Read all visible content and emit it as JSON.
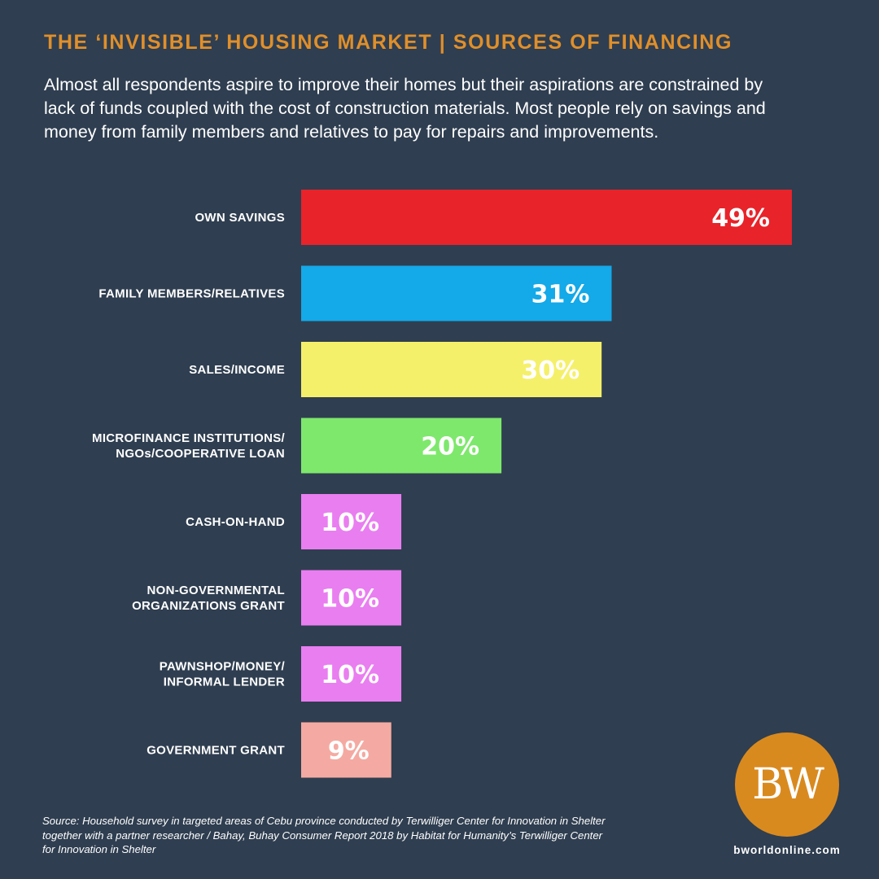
{
  "header": {
    "title": "THE ‘INVISIBLE’ HOUSING MARKET | SOURCES OF FINANCING",
    "subtitle": "Almost all respondents aspire to improve their homes but their aspirations are constrained by lack of funds coupled with the cost of construction materials. Most people rely on savings and money from family members and relatives to pay for repairs and improvements."
  },
  "chart_data": {
    "type": "bar",
    "orientation": "horizontal",
    "categories": [
      [
        "OWN SAVINGS"
      ],
      [
        "FAMILY MEMBERS/RELATIVES"
      ],
      [
        "SALES/INCOME"
      ],
      [
        "MICROFINANCE INSTITUTIONS/",
        "NGOs/COOPERATIVE LOAN"
      ],
      [
        "CASH-ON-HAND"
      ],
      [
        "NON-GOVERNMENTAL",
        "ORGANIZATIONS GRANT"
      ],
      [
        "PAWNSHOP/MONEY/",
        "INFORMAL LENDER"
      ],
      [
        "GOVERNMENT GRANT"
      ]
    ],
    "values": [
      49,
      31,
      30,
      20,
      10,
      10,
      10,
      9
    ],
    "value_labels": [
      "49%",
      "31%",
      "30%",
      "20%",
      "10%",
      "10%",
      "10%",
      "9%"
    ],
    "colors": [
      "#e8232a",
      "#14a9e8",
      "#f5f06a",
      "#7ee86c",
      "#e97ef0",
      "#e97ef0",
      "#e97ef0",
      "#f4aaa2"
    ],
    "xlim": [
      0,
      49
    ],
    "grid": false,
    "legend": "none"
  },
  "source": {
    "text": "Source: Household survey in targeted areas of Cebu province conducted by Terwilliger Center for Innovation in Shelter together with a partner researcher / Bahay, Buhay Consumer Report 2018 by Habitat for Humanity’s Terwilliger Center for Innovation in Shelter"
  },
  "brand": {
    "logo_text": "BW",
    "website": "bworldonline.com",
    "accent_color": "#d98a1f",
    "background_color": "#2f3e50"
  }
}
